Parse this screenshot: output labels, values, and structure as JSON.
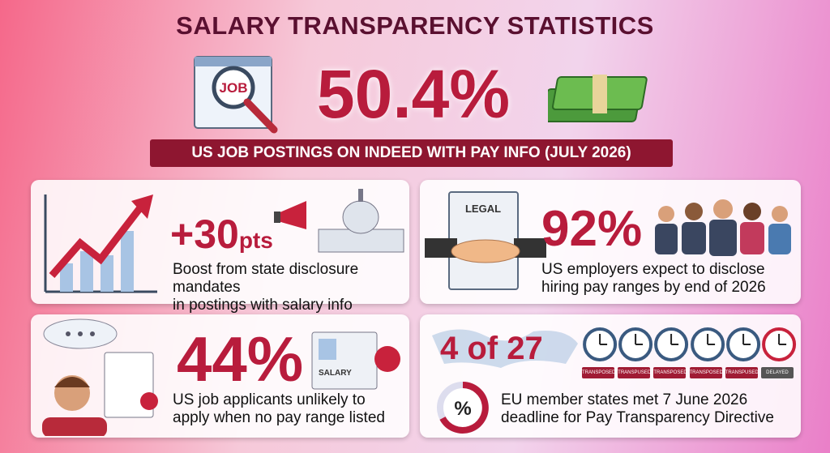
{
  "header": {
    "title": "SALARY TRANSPARENCY STATISTICS"
  },
  "hero": {
    "icon_label": "JOB",
    "stat": "50.4%",
    "caption": "US JOB POSTINGS ON INDEED WITH PAY INFO (JULY 2026)"
  },
  "cards": [
    {
      "stat": "+30",
      "unit": "pts",
      "lines": [
        "Boost from state disclosure mandates",
        "in postings with salary info"
      ]
    },
    {
      "icon_label": "LEGAL",
      "stat": "92%",
      "lines": [
        "US employers expect to disclose",
        "hiring pay ranges by end of 2026"
      ]
    },
    {
      "icon_label": "SALARY",
      "stat": "44%",
      "lines": [
        "US job applicants unlikely to",
        "apply when no pay range listed"
      ]
    },
    {
      "icon_label": "%",
      "stat": "4 of 27",
      "lines": [
        "EU member states met 7 June 2026",
        "deadline for Pay Transparency Directive"
      ],
      "clocks": [
        "TRANSPOSED",
        "TRANSPUSED",
        "TRANSPOSED",
        "TRANSPOSED",
        "TRANSPUSED",
        "DELAYED"
      ]
    }
  ]
}
